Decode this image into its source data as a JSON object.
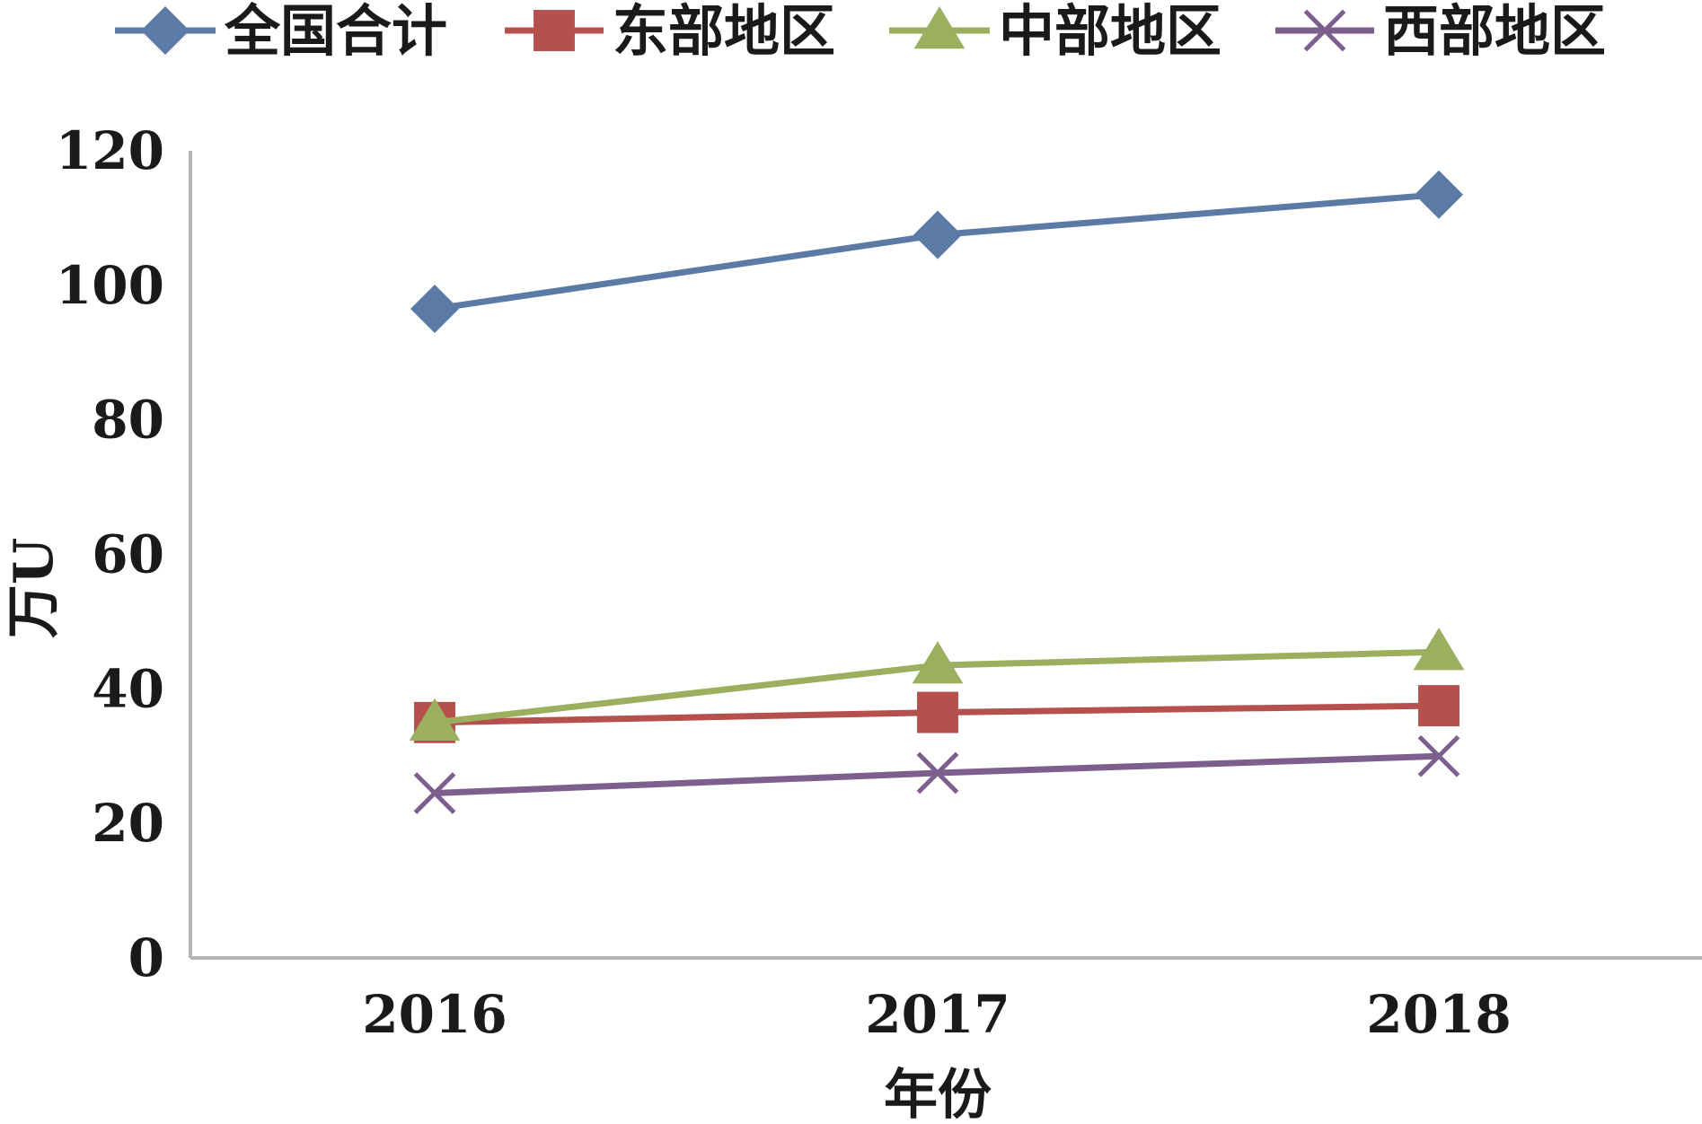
{
  "chart_data": {
    "type": "line",
    "title": "",
    "xlabel": "年份",
    "ylabel": "万U",
    "categories": [
      "2016",
      "2017",
      "2018"
    ],
    "ylim": [
      0,
      120
    ],
    "yticks": [
      0,
      20,
      40,
      60,
      80,
      100,
      120
    ],
    "grid": false,
    "legend_position": "top",
    "series": [
      {
        "name": "全国合计",
        "values": [
          96.5,
          107.5,
          113.5
        ],
        "color": "#5B7BA6",
        "marker": "diamond"
      },
      {
        "name": "东部地区",
        "values": [
          35,
          36.5,
          37.5
        ],
        "color": "#B5504C",
        "marker": "square"
      },
      {
        "name": "中部地区",
        "values": [
          35,
          43.5,
          45.5
        ],
        "color": "#9BAF5E",
        "marker": "triangle"
      },
      {
        "name": "西部地区",
        "values": [
          24.5,
          27.5,
          30
        ],
        "color": "#7D5F8E",
        "marker": "x"
      }
    ]
  }
}
